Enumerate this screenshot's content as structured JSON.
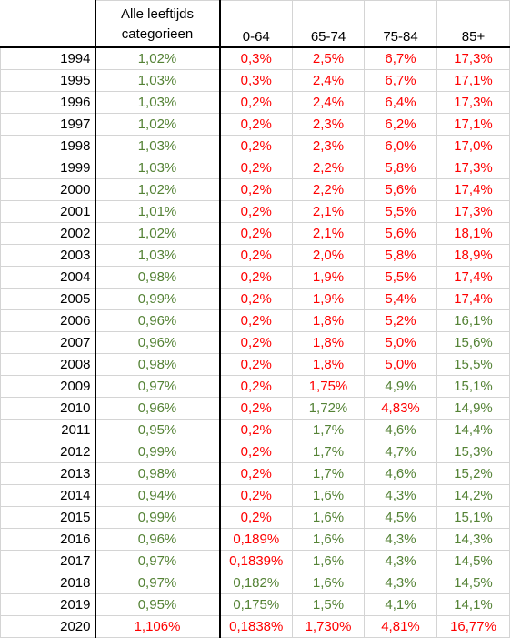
{
  "colors": {
    "red": "#ff0000",
    "green": "#548235"
  },
  "columns": [
    "",
    "Alle leeftijds categorieen",
    "0-64",
    "65-74",
    "75-84",
    "85+"
  ],
  "rows": [
    {
      "year": "1994",
      "cells": [
        {
          "v": "1,02%",
          "c": "green"
        },
        {
          "v": "0,3%",
          "c": "red"
        },
        {
          "v": "2,5%",
          "c": "red"
        },
        {
          "v": "6,7%",
          "c": "red"
        },
        {
          "v": "17,3%",
          "c": "red"
        }
      ]
    },
    {
      "year": "1995",
      "cells": [
        {
          "v": "1,03%",
          "c": "green"
        },
        {
          "v": "0,3%",
          "c": "red"
        },
        {
          "v": "2,4%",
          "c": "red"
        },
        {
          "v": "6,7%",
          "c": "red"
        },
        {
          "v": "17,1%",
          "c": "red"
        }
      ]
    },
    {
      "year": "1996",
      "cells": [
        {
          "v": "1,03%",
          "c": "green"
        },
        {
          "v": "0,2%",
          "c": "red"
        },
        {
          "v": "2,4%",
          "c": "red"
        },
        {
          "v": "6,4%",
          "c": "red"
        },
        {
          "v": "17,3%",
          "c": "red"
        }
      ]
    },
    {
      "year": "1997",
      "cells": [
        {
          "v": "1,02%",
          "c": "green"
        },
        {
          "v": "0,2%",
          "c": "red"
        },
        {
          "v": "2,3%",
          "c": "red"
        },
        {
          "v": "6,2%",
          "c": "red"
        },
        {
          "v": "17,1%",
          "c": "red"
        }
      ]
    },
    {
      "year": "1998",
      "cells": [
        {
          "v": "1,03%",
          "c": "green"
        },
        {
          "v": "0,2%",
          "c": "red"
        },
        {
          "v": "2,3%",
          "c": "red"
        },
        {
          "v": "6,0%",
          "c": "red"
        },
        {
          "v": "17,0%",
          "c": "red"
        }
      ]
    },
    {
      "year": "1999",
      "cells": [
        {
          "v": "1,03%",
          "c": "green"
        },
        {
          "v": "0,2%",
          "c": "red"
        },
        {
          "v": "2,2%",
          "c": "red"
        },
        {
          "v": "5,8%",
          "c": "red"
        },
        {
          "v": "17,3%",
          "c": "red"
        }
      ]
    },
    {
      "year": "2000",
      "cells": [
        {
          "v": "1,02%",
          "c": "green"
        },
        {
          "v": "0,2%",
          "c": "red"
        },
        {
          "v": "2,2%",
          "c": "red"
        },
        {
          "v": "5,6%",
          "c": "red"
        },
        {
          "v": "17,4%",
          "c": "red"
        }
      ]
    },
    {
      "year": "2001",
      "cells": [
        {
          "v": "1,01%",
          "c": "green"
        },
        {
          "v": "0,2%",
          "c": "red"
        },
        {
          "v": "2,1%",
          "c": "red"
        },
        {
          "v": "5,5%",
          "c": "red"
        },
        {
          "v": "17,3%",
          "c": "red"
        }
      ]
    },
    {
      "year": "2002",
      "cells": [
        {
          "v": "1,02%",
          "c": "green"
        },
        {
          "v": "0,2%",
          "c": "red"
        },
        {
          "v": "2,1%",
          "c": "red"
        },
        {
          "v": "5,6%",
          "c": "red"
        },
        {
          "v": "18,1%",
          "c": "red"
        }
      ]
    },
    {
      "year": "2003",
      "cells": [
        {
          "v": "1,03%",
          "c": "green"
        },
        {
          "v": "0,2%",
          "c": "red"
        },
        {
          "v": "2,0%",
          "c": "red"
        },
        {
          "v": "5,8%",
          "c": "red"
        },
        {
          "v": "18,9%",
          "c": "red"
        }
      ]
    },
    {
      "year": "2004",
      "cells": [
        {
          "v": "0,98%",
          "c": "green"
        },
        {
          "v": "0,2%",
          "c": "red"
        },
        {
          "v": "1,9%",
          "c": "red"
        },
        {
          "v": "5,5%",
          "c": "red"
        },
        {
          "v": "17,4%",
          "c": "red"
        }
      ]
    },
    {
      "year": "2005",
      "cells": [
        {
          "v": "0,99%",
          "c": "green"
        },
        {
          "v": "0,2%",
          "c": "red"
        },
        {
          "v": "1,9%",
          "c": "red"
        },
        {
          "v": "5,4%",
          "c": "red"
        },
        {
          "v": "17,4%",
          "c": "red"
        }
      ]
    },
    {
      "year": "2006",
      "cells": [
        {
          "v": "0,96%",
          "c": "green"
        },
        {
          "v": "0,2%",
          "c": "red"
        },
        {
          "v": "1,8%",
          "c": "red"
        },
        {
          "v": "5,2%",
          "c": "red"
        },
        {
          "v": "16,1%",
          "c": "green"
        }
      ]
    },
    {
      "year": "2007",
      "cells": [
        {
          "v": "0,96%",
          "c": "green"
        },
        {
          "v": "0,2%",
          "c": "red"
        },
        {
          "v": "1,8%",
          "c": "red"
        },
        {
          "v": "5,0%",
          "c": "red"
        },
        {
          "v": "15,6%",
          "c": "green"
        }
      ]
    },
    {
      "year": "2008",
      "cells": [
        {
          "v": "0,98%",
          "c": "green"
        },
        {
          "v": "0,2%",
          "c": "red"
        },
        {
          "v": "1,8%",
          "c": "red"
        },
        {
          "v": "5,0%",
          "c": "red"
        },
        {
          "v": "15,5%",
          "c": "green"
        }
      ]
    },
    {
      "year": "2009",
      "cells": [
        {
          "v": "0,97%",
          "c": "green"
        },
        {
          "v": "0,2%",
          "c": "red"
        },
        {
          "v": "1,75%",
          "c": "red"
        },
        {
          "v": "4,9%",
          "c": "green"
        },
        {
          "v": "15,1%",
          "c": "green"
        }
      ]
    },
    {
      "year": "2010",
      "cells": [
        {
          "v": "0,96%",
          "c": "green"
        },
        {
          "v": "0,2%",
          "c": "red"
        },
        {
          "v": "1,72%",
          "c": "green"
        },
        {
          "v": "4,83%",
          "c": "red"
        },
        {
          "v": "14,9%",
          "c": "green"
        }
      ]
    },
    {
      "year": "2011",
      "cells": [
        {
          "v": "0,95%",
          "c": "green"
        },
        {
          "v": "0,2%",
          "c": "red"
        },
        {
          "v": "1,7%",
          "c": "green"
        },
        {
          "v": "4,6%",
          "c": "green"
        },
        {
          "v": "14,4%",
          "c": "green"
        }
      ]
    },
    {
      "year": "2012",
      "cells": [
        {
          "v": "0,99%",
          "c": "green"
        },
        {
          "v": "0,2%",
          "c": "red"
        },
        {
          "v": "1,7%",
          "c": "green"
        },
        {
          "v": "4,7%",
          "c": "green"
        },
        {
          "v": "15,3%",
          "c": "green"
        }
      ]
    },
    {
      "year": "2013",
      "cells": [
        {
          "v": "0,98%",
          "c": "green"
        },
        {
          "v": "0,2%",
          "c": "red"
        },
        {
          "v": "1,7%",
          "c": "green"
        },
        {
          "v": "4,6%",
          "c": "green"
        },
        {
          "v": "15,2%",
          "c": "green"
        }
      ]
    },
    {
      "year": "2014",
      "cells": [
        {
          "v": "0,94%",
          "c": "green"
        },
        {
          "v": "0,2%",
          "c": "red"
        },
        {
          "v": "1,6%",
          "c": "green"
        },
        {
          "v": "4,3%",
          "c": "green"
        },
        {
          "v": "14,2%",
          "c": "green"
        }
      ]
    },
    {
      "year": "2015",
      "cells": [
        {
          "v": "0,99%",
          "c": "green"
        },
        {
          "v": "0,2%",
          "c": "red"
        },
        {
          "v": "1,6%",
          "c": "green"
        },
        {
          "v": "4,5%",
          "c": "green"
        },
        {
          "v": "15,1%",
          "c": "green"
        }
      ]
    },
    {
      "year": "2016",
      "cells": [
        {
          "v": "0,96%",
          "c": "green"
        },
        {
          "v": "0,189%",
          "c": "red"
        },
        {
          "v": "1,6%",
          "c": "green"
        },
        {
          "v": "4,3%",
          "c": "green"
        },
        {
          "v": "14,3%",
          "c": "green"
        }
      ]
    },
    {
      "year": "2017",
      "cells": [
        {
          "v": "0,97%",
          "c": "green"
        },
        {
          "v": "0,1839%",
          "c": "red"
        },
        {
          "v": "1,6%",
          "c": "green"
        },
        {
          "v": "4,3%",
          "c": "green"
        },
        {
          "v": "14,5%",
          "c": "green"
        }
      ]
    },
    {
      "year": "2018",
      "cells": [
        {
          "v": "0,97%",
          "c": "green"
        },
        {
          "v": "0,182%",
          "c": "green"
        },
        {
          "v": "1,6%",
          "c": "green"
        },
        {
          "v": "4,3%",
          "c": "green"
        },
        {
          "v": "14,5%",
          "c": "green"
        }
      ]
    },
    {
      "year": "2019",
      "cells": [
        {
          "v": "0,95%",
          "c": "green"
        },
        {
          "v": "0,175%",
          "c": "green"
        },
        {
          "v": "1,5%",
          "c": "green"
        },
        {
          "v": "4,1%",
          "c": "green"
        },
        {
          "v": "14,1%",
          "c": "green"
        }
      ]
    },
    {
      "year": "2020",
      "cells": [
        {
          "v": "1,106%",
          "c": "red"
        },
        {
          "v": "0,1838%",
          "c": "red"
        },
        {
          "v": "1,730%",
          "c": "red"
        },
        {
          "v": "4,81%",
          "c": "red"
        },
        {
          "v": "16,77%",
          "c": "red"
        }
      ]
    }
  ]
}
